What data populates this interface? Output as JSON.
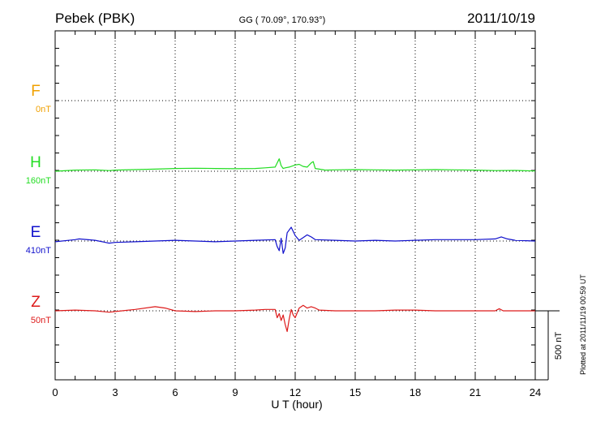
{
  "header": {
    "station": "Pebek (PBK)",
    "coords": "GG ( 70.09°, 170.93°)",
    "date": "2011/10/19"
  },
  "footer": {
    "plotted": "Plotted at 2011/11/19 00:59 UT"
  },
  "chart_data": {
    "type": "line",
    "title": "Pebek (PBK)",
    "xlabel": "U T (hour)",
    "xlim": [
      0,
      24
    ],
    "xticks": [
      "0",
      "3",
      "6",
      "9",
      "12",
      "15",
      "18",
      "21",
      "24"
    ],
    "grid": true,
    "scale_bar": {
      "label": "500 nT",
      "value": 500
    },
    "series": [
      {
        "name": "F",
        "offset_label": "0nT",
        "color": "#f0a000",
        "has_data": false,
        "x": [],
        "y": []
      },
      {
        "name": "H",
        "offset_label": "160nT",
        "color": "#22dd22",
        "has_data": true,
        "x": [
          0,
          1,
          2,
          2.7,
          3,
          4,
          5,
          6,
          7,
          8,
          9,
          10,
          10.5,
          11,
          11.2,
          11.3,
          11.4,
          11.5,
          11.7,
          12,
          12.2,
          12.4,
          12.6,
          12.8,
          12.9,
          13,
          13.2,
          13.5,
          14,
          15,
          16,
          17,
          18,
          19,
          20,
          21,
          22,
          23,
          24
        ],
        "y": [
          0,
          8,
          10,
          5,
          8,
          12,
          15,
          20,
          22,
          20,
          18,
          20,
          25,
          30,
          90,
          40,
          20,
          25,
          30,
          45,
          50,
          35,
          30,
          60,
          70,
          20,
          15,
          8,
          10,
          12,
          10,
          8,
          10,
          12,
          10,
          8,
          5,
          6,
          2
        ]
      },
      {
        "name": "E",
        "offset_label": "410nT",
        "color": "#1010cc",
        "has_data": true,
        "x": [
          0,
          1,
          1.2,
          2,
          2.7,
          3,
          4,
          5,
          6,
          7,
          8,
          9,
          10,
          11,
          11.1,
          11.2,
          11.3,
          11.4,
          11.5,
          11.6,
          11.8,
          12,
          12.2,
          12.4,
          12.6,
          12.8,
          13,
          14,
          15,
          16,
          17,
          18,
          19,
          20,
          21,
          22,
          22.3,
          22.6,
          23,
          24
        ],
        "y": [
          -5,
          10,
          15,
          5,
          -15,
          -10,
          -5,
          0,
          5,
          0,
          -5,
          0,
          5,
          10,
          -40,
          -70,
          20,
          -90,
          -50,
          60,
          100,
          40,
          5,
          25,
          45,
          30,
          10,
          5,
          0,
          5,
          0,
          5,
          10,
          10,
          10,
          15,
          30,
          15,
          5,
          0
        ]
      },
      {
        "name": "Z",
        "offset_label": "50nT",
        "color": "#dd1a1a",
        "has_data": true,
        "x": [
          0,
          1,
          2,
          2.7,
          3,
          4,
          5,
          5.5,
          6,
          7,
          8,
          9,
          10,
          10.5,
          11,
          11.1,
          11.2,
          11.3,
          11.4,
          11.5,
          11.6,
          11.7,
          11.8,
          11.9,
          12,
          12.2,
          12.4,
          12.6,
          12.8,
          13,
          13.2,
          14,
          15,
          16,
          17,
          18,
          19,
          20,
          21,
          22,
          22.2,
          22.4,
          23,
          24
        ],
        "y": [
          0,
          5,
          0,
          -10,
          -5,
          10,
          30,
          20,
          0,
          -5,
          0,
          0,
          5,
          10,
          10,
          -50,
          -20,
          -70,
          -30,
          -100,
          -150,
          -60,
          10,
          -30,
          -50,
          20,
          40,
          20,
          30,
          20,
          5,
          0,
          0,
          0,
          5,
          5,
          0,
          0,
          0,
          0,
          15,
          0,
          0,
          0
        ]
      }
    ]
  }
}
